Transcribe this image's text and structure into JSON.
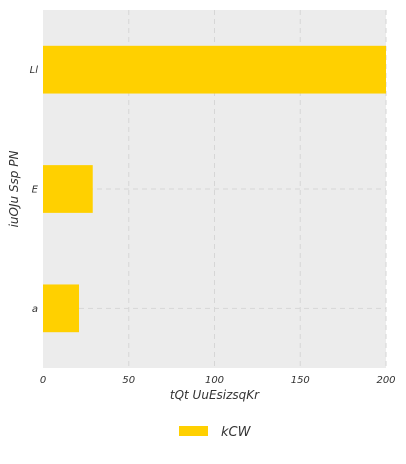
{
  "chart_data": {
    "type": "bar",
    "orientation": "horizontal",
    "categories": [
      "a",
      "E",
      "Ll"
    ],
    "series": [
      {
        "name": "kCW",
        "values": [
          21,
          29,
          200
        ]
      }
    ],
    "title": "",
    "xlabel": "tQt UuEsizsqKr",
    "ylabel": "iuOJu Ssp PN",
    "xlim": [
      0,
      200
    ],
    "xticks": [
      0,
      50,
      100,
      150,
      200
    ],
    "grid": true,
    "legend_position": "bottom-center",
    "colors": {
      "bar": "#ffd000",
      "plot_background": "#ececec",
      "grid": "#d6d6d6",
      "text": "#333333"
    }
  }
}
